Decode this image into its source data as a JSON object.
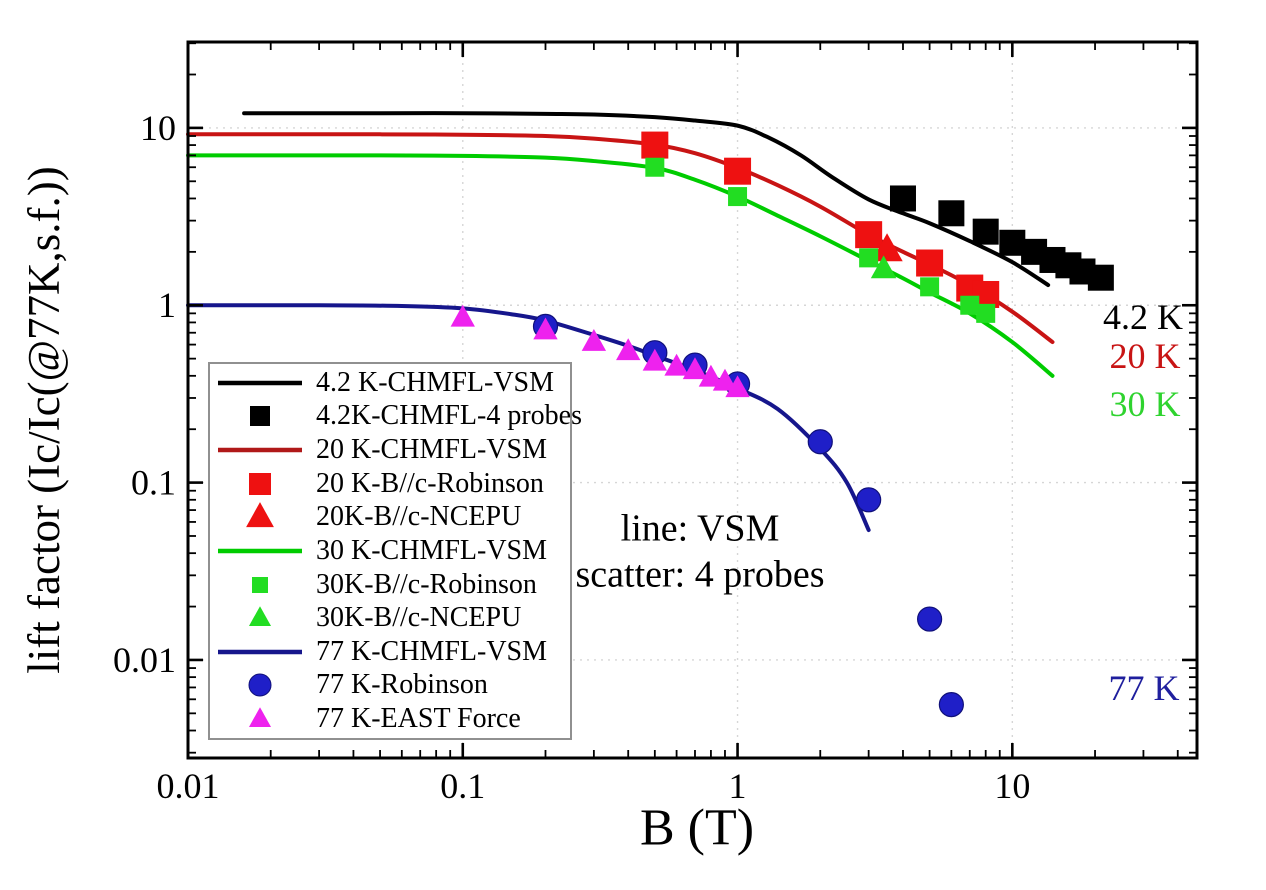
{
  "chart_data": {
    "type": "line+scatter",
    "title": "",
    "xlabel": "B (T)",
    "ylabel": "lift factor (Ic/Ic(@77K,s.f.))",
    "x_scale": "log",
    "y_scale": "log",
    "xlim": [
      0.01,
      47
    ],
    "ylim": [
      0.0028,
      30.5
    ],
    "x_ticks": [
      [
        0.01,
        "0.01"
      ],
      [
        0.1,
        "0.1"
      ],
      [
        1,
        "1"
      ],
      [
        10,
        "10"
      ]
    ],
    "y_ticks": [
      [
        0.01,
        "0.01"
      ],
      [
        0.1,
        "0.1"
      ],
      [
        1,
        "1"
      ],
      [
        10,
        "10"
      ]
    ],
    "grid": {
      "style": "dotted",
      "color": "#d6d6d6",
      "x_at": [
        0.1,
        1,
        10
      ],
      "y_at": [
        0.01,
        0.1,
        1,
        10
      ]
    },
    "annotation": {
      "line1": "line: VSM",
      "line2": "scatter: 4 probes"
    },
    "temp_labels": [
      {
        "text": "4.2 K",
        "color": "#000000"
      },
      {
        "text": "20 K",
        "color": "#c81414"
      },
      {
        "text": "30 K",
        "color": "#2fd32f"
      },
      {
        "text": "77 K",
        "color": "#1f1f9e"
      }
    ],
    "series": [
      {
        "name": "4.2 K-CHMFL-VSM",
        "type": "line",
        "color": "#000000",
        "width": 4,
        "points": [
          [
            0.016,
            12.1
          ],
          [
            0.03,
            12.1
          ],
          [
            0.05,
            12.1
          ],
          [
            0.1,
            12.1
          ],
          [
            0.2,
            12.0
          ],
          [
            0.3,
            11.9
          ],
          [
            0.5,
            11.5
          ],
          [
            0.7,
            11.0
          ],
          [
            1,
            10.3
          ],
          [
            1.3,
            8.8
          ],
          [
            1.7,
            7.0
          ],
          [
            2.2,
            5.3
          ],
          [
            3,
            3.95
          ],
          [
            4,
            3.3
          ],
          [
            5,
            2.9
          ],
          [
            7,
            2.3
          ],
          [
            10,
            1.75
          ],
          [
            13.5,
            1.3
          ]
        ]
      },
      {
        "name": "4.2K-CHMFL-4 probes",
        "type": "scatter",
        "marker": "square",
        "color": "#000000",
        "size": 26,
        "points": [
          [
            4,
            4.0
          ],
          [
            6,
            3.3
          ],
          [
            8,
            2.6
          ],
          [
            10,
            2.25
          ],
          [
            12,
            2.0
          ],
          [
            14,
            1.8
          ],
          [
            16,
            1.68
          ],
          [
            18,
            1.55
          ],
          [
            21,
            1.43
          ]
        ]
      },
      {
        "name": "20 K-CHMFL-VSM",
        "type": "line",
        "color": "#c81414",
        "width": 4,
        "points": [
          [
            0.01,
            9.2
          ],
          [
            0.03,
            9.2
          ],
          [
            0.05,
            9.2
          ],
          [
            0.1,
            9.15
          ],
          [
            0.2,
            9.0
          ],
          [
            0.3,
            8.7
          ],
          [
            0.5,
            8.05
          ],
          [
            0.7,
            7.2
          ],
          [
            1,
            5.95
          ],
          [
            1.4,
            4.75
          ],
          [
            2,
            3.6
          ],
          [
            3,
            2.5
          ],
          [
            4,
            2.0
          ],
          [
            5,
            1.7
          ],
          [
            7,
            1.3
          ],
          [
            10,
            0.92
          ],
          [
            14,
            0.62
          ]
        ]
      },
      {
        "name": "20 K-B//c-Robinson",
        "type": "scatter",
        "marker": "square",
        "color": "#ee1111",
        "size": 27,
        "points": [
          [
            0.5,
            8.0
          ],
          [
            1,
            5.7
          ],
          [
            3,
            2.5
          ],
          [
            5,
            1.73
          ],
          [
            7,
            1.25
          ],
          [
            8,
            1.15
          ]
        ]
      },
      {
        "name": "20K-B//c-NCEPU",
        "type": "scatter",
        "marker": "triangle",
        "color": "#ee1111",
        "size": 27,
        "points": [
          [
            3.5,
            2.05
          ]
        ]
      },
      {
        "name": "30 K-CHMFL-VSM",
        "type": "line",
        "color": "#00cc00",
        "width": 4,
        "points": [
          [
            0.01,
            7.0
          ],
          [
            0.03,
            7.0
          ],
          [
            0.05,
            7.0
          ],
          [
            0.1,
            6.95
          ],
          [
            0.2,
            6.8
          ],
          [
            0.3,
            6.5
          ],
          [
            0.5,
            5.95
          ],
          [
            0.7,
            5.1
          ],
          [
            1,
            4.1
          ],
          [
            1.4,
            3.2
          ],
          [
            2,
            2.45
          ],
          [
            3,
            1.78
          ],
          [
            4,
            1.42
          ],
          [
            5,
            1.18
          ],
          [
            7,
            0.9
          ],
          [
            10,
            0.62
          ],
          [
            14,
            0.4
          ]
        ]
      },
      {
        "name": "30K-B//c-Robinson",
        "type": "scatter",
        "marker": "square",
        "color": "#22dd22",
        "size": 19,
        "points": [
          [
            0.5,
            6.0
          ],
          [
            1,
            4.1
          ],
          [
            3,
            1.85
          ],
          [
            5,
            1.27
          ],
          [
            7,
            1.0
          ],
          [
            8,
            0.9
          ]
        ]
      },
      {
        "name": "30K-B//c-NCEPU",
        "type": "scatter",
        "marker": "triangle",
        "color": "#22dd22",
        "size": 22,
        "points": [
          [
            3.4,
            1.6
          ]
        ]
      },
      {
        "name": "77 K-CHMFL-VSM",
        "type": "line",
        "color": "#16168c",
        "width": 4,
        "points": [
          [
            0.01,
            1.0
          ],
          [
            0.03,
            1.0
          ],
          [
            0.06,
            0.99
          ],
          [
            0.1,
            0.96
          ],
          [
            0.15,
            0.89
          ],
          [
            0.2,
            0.82
          ],
          [
            0.3,
            0.68
          ],
          [
            0.4,
            0.59
          ],
          [
            0.5,
            0.52
          ],
          [
            0.7,
            0.43
          ],
          [
            1,
            0.34
          ],
          [
            1.4,
            0.26
          ],
          [
            2,
            0.155
          ],
          [
            2.5,
            0.1
          ],
          [
            3,
            0.054
          ]
        ]
      },
      {
        "name": "77 K-Robinson",
        "type": "scatter",
        "marker": "circle",
        "color": "#1f1fc8",
        "size": 24,
        "points": [
          [
            0.2,
            0.76
          ],
          [
            0.5,
            0.54
          ],
          [
            0.7,
            0.46
          ],
          [
            1,
            0.36
          ],
          [
            2,
            0.17
          ],
          [
            3,
            0.08
          ],
          [
            5,
            0.017
          ],
          [
            6,
            0.0056
          ]
        ]
      },
      {
        "name": "77 K-EAST Force",
        "type": "scatter",
        "marker": "triangle",
        "color": "#ee22ee",
        "size": 21,
        "points": [
          [
            0.1,
            0.85
          ],
          [
            0.2,
            0.72
          ],
          [
            0.3,
            0.62
          ],
          [
            0.4,
            0.55
          ],
          [
            0.5,
            0.48
          ],
          [
            0.6,
            0.45
          ],
          [
            0.7,
            0.43
          ],
          [
            0.8,
            0.39
          ],
          [
            0.9,
            0.37
          ],
          [
            1.0,
            0.34
          ]
        ]
      }
    ]
  },
  "legend": {
    "items": [
      {
        "label": "4.2 K-CHMFL-VSM",
        "marker": "line",
        "color": "#000000",
        "size": 0
      },
      {
        "label": "4.2K-CHMFL-4 probes",
        "marker": "square",
        "color": "#000000",
        "size": 20
      },
      {
        "label": "20 K-CHMFL-VSM",
        "marker": "line",
        "color": "#b01818",
        "size": 0
      },
      {
        "label": "20 K-B//c-Robinson",
        "marker": "square",
        "color": "#ee1111",
        "size": 22
      },
      {
        "label": "20K-B//c-NCEPU",
        "marker": "triangle",
        "color": "#ee1111",
        "size": 24
      },
      {
        "label": "30 K-CHMFL-VSM",
        "marker": "line",
        "color": "#00cc00",
        "size": 0
      },
      {
        "label": "30K-B//c-Robinson",
        "marker": "square",
        "color": "#22dd22",
        "size": 16
      },
      {
        "label": "30K-B//c-NCEPU",
        "marker": "triangle",
        "color": "#22dd22",
        "size": 19
      },
      {
        "label": "77 K-CHMFL-VSM",
        "marker": "line",
        "color": "#16168c",
        "size": 0
      },
      {
        "label": "77 K-Robinson",
        "marker": "circle",
        "color": "#1f1fc8",
        "size": 22
      },
      {
        "label": "77 K-EAST Force",
        "marker": "triangle",
        "color": "#ee22ee",
        "size": 19
      }
    ]
  }
}
